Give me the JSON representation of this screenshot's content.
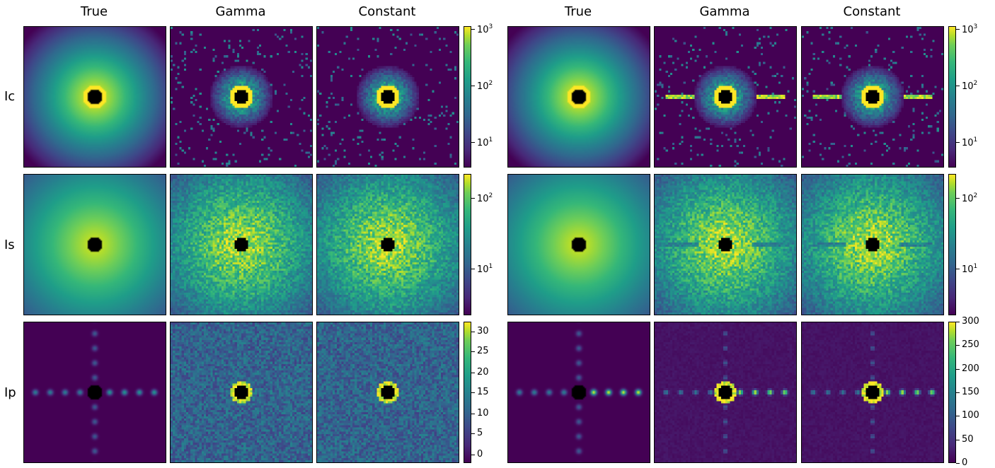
{
  "figure": {
    "groups": [
      {
        "columns": [
          "True",
          "Gamma",
          "Constant"
        ],
        "rows": [
          {
            "label": "Ic",
            "colorbar": {
              "scale": "log",
              "ticks": [
                "10^3",
                "10^2",
                "10^1"
              ]
            }
          },
          {
            "label": "Is",
            "colorbar": {
              "scale": "log",
              "ticks": [
                "10^2",
                "10^1"
              ]
            }
          },
          {
            "label": "Ip",
            "colorbar": {
              "scale": "linear",
              "ticks": [
                "30",
                "25",
                "20",
                "15",
                "10",
                "5",
                "0"
              ]
            }
          }
        ]
      },
      {
        "columns": [
          "True",
          "Gamma",
          "Constant"
        ],
        "rows": [
          {
            "label": "",
            "colorbar": {
              "scale": "log",
              "ticks": [
                "10^3",
                "10^2",
                "10^1"
              ]
            }
          },
          {
            "label": "",
            "colorbar": {
              "scale": "log",
              "ticks": [
                "10^2",
                "10^1"
              ]
            }
          },
          {
            "label": "",
            "colorbar": {
              "scale": "linear",
              "ticks": [
                "300",
                "250",
                "200",
                "150",
                "100",
                "50",
                "0"
              ]
            }
          }
        ]
      }
    ],
    "colormap": "viridis",
    "colors": {
      "low": "#440154",
      "mid": "#21918c",
      "high": "#fde725",
      "mask": "#000000"
    }
  }
}
